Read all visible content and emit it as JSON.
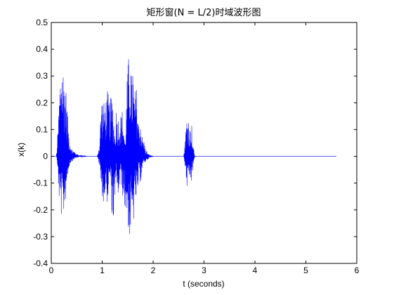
{
  "chart_data": {
    "type": "line",
    "title": "矩形窗(N = L/2)时域波形图",
    "xlabel": "t (seconds)",
    "ylabel": "x(k)",
    "xlim": [
      0,
      6
    ],
    "ylim": [
      -0.4,
      0.5
    ],
    "xticks": [
      0,
      1,
      2,
      3,
      4,
      5,
      6
    ],
    "yticks": [
      -0.4,
      -0.3,
      -0.2,
      -0.1,
      0,
      0.1,
      0.2,
      0.3,
      0.4,
      0.5
    ],
    "grid": false,
    "colors": {
      "series": "#0000ff",
      "axes": "#000000",
      "background": "#ffffff"
    },
    "series": [
      {
        "x": [
          0.0,
          0.1,
          0.13,
          0.16,
          0.2,
          0.22,
          0.25,
          0.27,
          0.3,
          0.33,
          0.36,
          0.4,
          0.45,
          0.5,
          0.55,
          0.6,
          0.7,
          0.9,
          0.95,
          0.98,
          1.0,
          1.03,
          1.06,
          1.1,
          1.15,
          1.2,
          1.25,
          1.28,
          1.3,
          1.35,
          1.4,
          1.45,
          1.5,
          1.53,
          1.56,
          1.58,
          1.6,
          1.62,
          1.65,
          1.68,
          1.72,
          1.75,
          1.78,
          1.82,
          1.85,
          1.9,
          2.0,
          2.2,
          2.6,
          2.66,
          2.69,
          2.72,
          2.75,
          2.78,
          2.82,
          3.0,
          4.0,
          5.0,
          5.6
        ],
        "upper": [
          0.0,
          0.0,
          0.1,
          0.25,
          0.41,
          0.35,
          0.34,
          0.3,
          0.23,
          0.13,
          0.07,
          0.03,
          0.02,
          0.01,
          0.005,
          0.005,
          0.0,
          0.0,
          0.05,
          0.22,
          0.23,
          0.2,
          0.21,
          0.25,
          0.21,
          0.24,
          0.08,
          0.2,
          0.15,
          0.15,
          0.18,
          0.05,
          0.35,
          0.39,
          0.41,
          0.27,
          0.38,
          0.24,
          0.25,
          0.26,
          0.12,
          0.15,
          0.08,
          0.06,
          0.03,
          0.01,
          0.0,
          0.0,
          0.0,
          0.15,
          0.17,
          0.1,
          0.15,
          0.05,
          0.0,
          0.0,
          0.0,
          0.0,
          0.0
        ],
        "lower": [
          0.0,
          0.0,
          -0.08,
          -0.2,
          -0.23,
          -0.25,
          -0.21,
          -0.18,
          -0.1,
          -0.06,
          -0.03,
          -0.02,
          -0.01,
          -0.005,
          -0.003,
          -0.003,
          0.0,
          0.0,
          -0.04,
          -0.14,
          -0.15,
          -0.19,
          -0.15,
          -0.18,
          -0.07,
          -0.27,
          -0.2,
          -0.06,
          -0.2,
          -0.08,
          -0.15,
          -0.21,
          -0.23,
          -0.35,
          -0.27,
          -0.3,
          -0.24,
          -0.25,
          -0.16,
          -0.2,
          -0.08,
          -0.1,
          -0.05,
          -0.03,
          -0.02,
          -0.01,
          0.0,
          0.0,
          0.0,
          -0.12,
          -0.13,
          -0.08,
          -0.11,
          -0.04,
          0.0,
          0.0,
          0.0,
          0.0,
          0.0
        ]
      }
    ]
  }
}
